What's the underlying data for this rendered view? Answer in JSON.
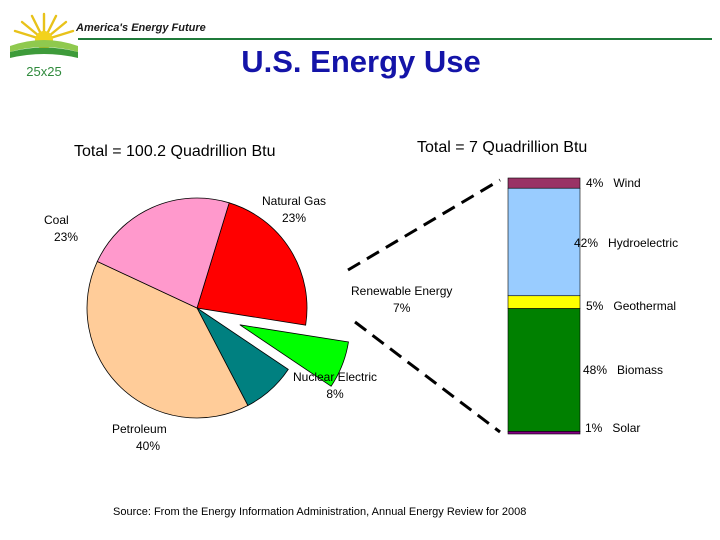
{
  "header": {
    "tagline": "America's Energy Future",
    "logo_text": "25x25",
    "title": "U.S. Energy Use"
  },
  "colors": {
    "accent_green": "#1f7a3a",
    "title_blue": "#1414a8"
  },
  "chart_data": [
    {
      "type": "pie",
      "title": "Total = 100.2 Quadrillion Btu",
      "slices": [
        {
          "label": "Natural Gas",
          "value": 23,
          "display": "23%",
          "color": "#ff0000"
        },
        {
          "label": "Renewable Energy",
          "value": 7,
          "display": "7%",
          "color": "#00ff00",
          "exploded": true
        },
        {
          "label": "Nuclear Electric",
          "value": 8,
          "display": "8%",
          "color": "#008080"
        },
        {
          "label": "Petroleum",
          "value": 40,
          "display": "40%",
          "color": "#ffcc99"
        },
        {
          "label": "Coal",
          "value": 23,
          "display": "23%",
          "color": "#ff99cc"
        }
      ]
    },
    {
      "type": "bar",
      "stacked": true,
      "title": "Total = 7 Quadrillion Btu",
      "segments": [
        {
          "label": "Wind",
          "value": 4,
          "display": "4%",
          "color": "#993366"
        },
        {
          "label": "Hydroelectric",
          "value": 42,
          "display": "42%",
          "color": "#99ccff"
        },
        {
          "label": "Geothermal",
          "value": 5,
          "display": "5%",
          "color": "#ffff00"
        },
        {
          "label": "Biomass",
          "value": 48,
          "display": "48%",
          "color": "#008000"
        },
        {
          "label": "Solar",
          "value": 1,
          "display": "1%",
          "color": "#800080"
        }
      ]
    }
  ],
  "source": "Source:  From the Energy Information Administration, Annual Energy Review for 2008"
}
